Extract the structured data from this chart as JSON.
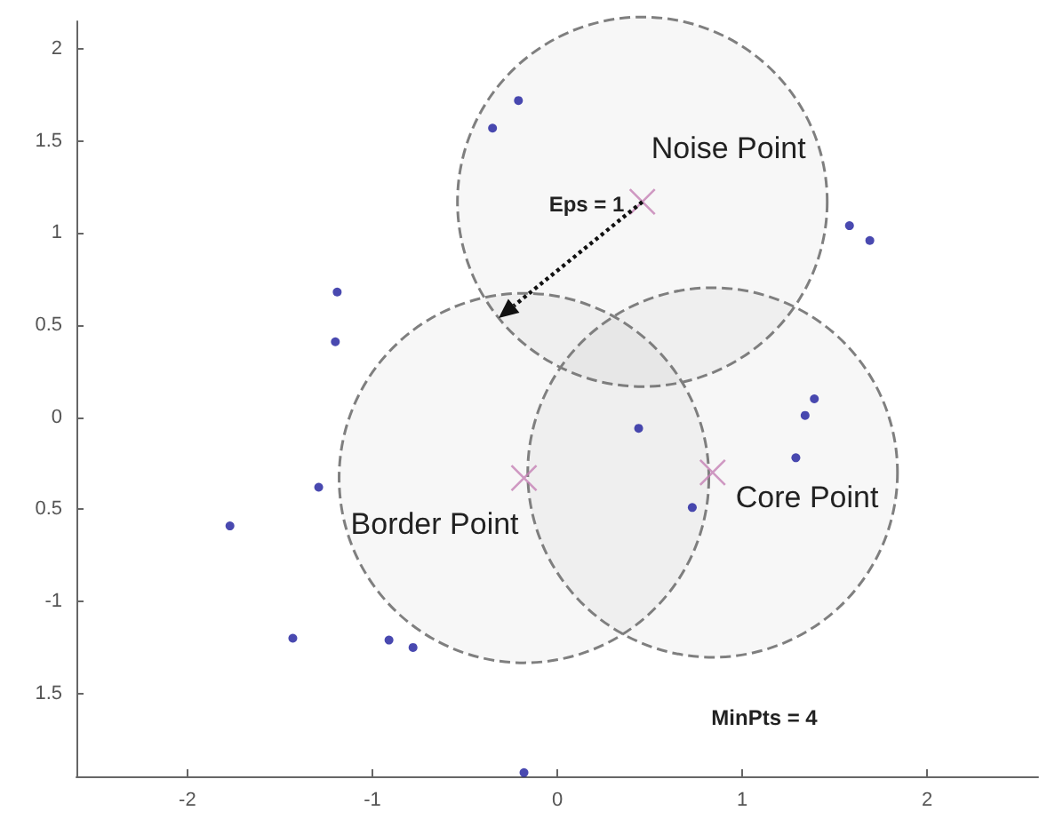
{
  "chart_data": {
    "type": "scatter",
    "xlim": [
      -2.6,
      2.6
    ],
    "xticks": [
      -2,
      -1,
      0,
      1,
      2
    ],
    "ylim": [
      -1.95,
      2.15
    ],
    "yticks": [
      {
        "value": -1.5,
        "label": "1.5"
      },
      -1,
      {
        "value": -0.5,
        "label": "0.5"
      },
      0,
      0.5,
      1,
      1.5,
      2
    ],
    "grid": false,
    "series": [
      {
        "type": "bubble",
        "color": "#7f7f7f",
        "line_style": "dashed",
        "x": [
          0.46,
          -0.18,
          0.84
        ],
        "values": [
          1.17,
          -0.33,
          -0.3
        ],
        "sizes": [
          1,
          1,
          1
        ]
      },
      {
        "color": "#1c1c9c",
        "marker": "circle",
        "x": [
          -0.21,
          -0.35,
          -1.19,
          -1.2,
          1.58,
          1.69,
          1.39,
          1.34,
          0.44,
          1.29,
          0.73,
          -0.18,
          -1.29,
          -1.77,
          -1.43,
          -0.91,
          -0.78
        ],
        "values": [
          1.72,
          1.57,
          0.68,
          0.41,
          1.04,
          0.96,
          0.1,
          0.01,
          -0.06,
          -0.22,
          -0.49,
          -1.93,
          -0.38,
          -0.59,
          -1.2,
          -1.21,
          -1.25
        ]
      },
      {
        "color": "#c47fb4",
        "marker": "cross",
        "x": [
          0.46,
          -0.18,
          0.84
        ],
        "values": [
          1.17,
          -0.33,
          -0.3
        ]
      }
    ],
    "annotations": [
      {
        "text": "Noise Point",
        "x": 0.46,
        "y": 1.17
      },
      "Eps = 1",
      {
        "text": "Border Point",
        "x": -0.18,
        "y": -0.33
      },
      {
        "text": "Core Point",
        "x": 0.84,
        "y": -0.3
      },
      "MinPts = 4"
    ]
  }
}
